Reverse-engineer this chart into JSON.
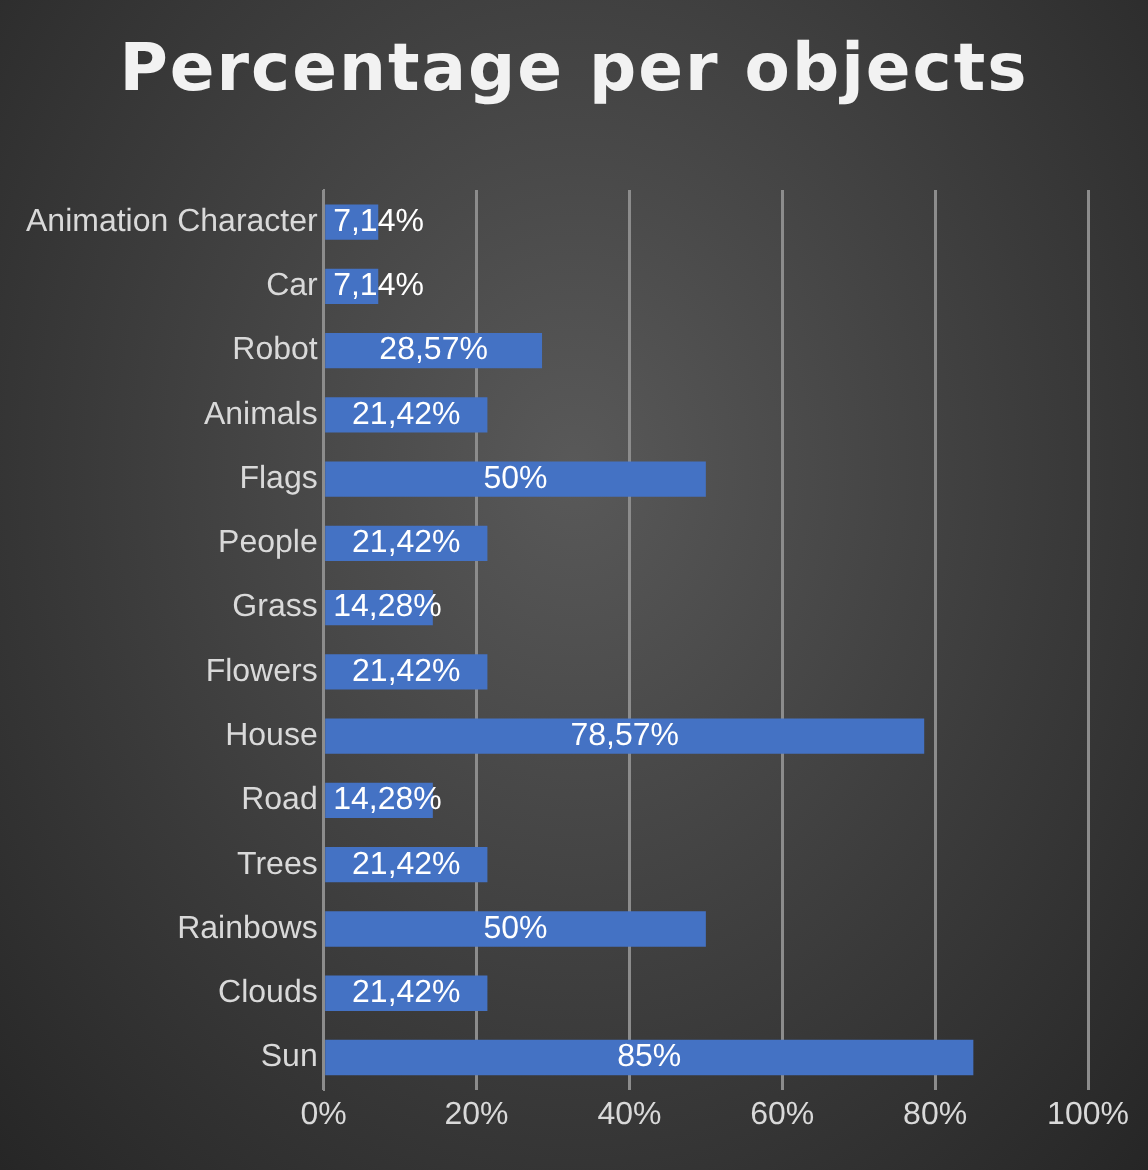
{
  "chart_data": {
    "type": "bar",
    "orientation": "horizontal",
    "title": "Percentage per objects",
    "categories": [
      "Animation Character",
      "Car",
      "Robot",
      "Animals",
      "Flags",
      "People",
      "Grass",
      "Flowers",
      "House",
      "Road",
      "Trees",
      "Rainbows",
      "Clouds",
      "Sun"
    ],
    "values": [
      7.14,
      7.14,
      28.57,
      21.42,
      50,
      21.42,
      14.28,
      21.42,
      78.57,
      14.28,
      21.42,
      50,
      21.42,
      85
    ],
    "value_labels": [
      "7,14%",
      "7,14%",
      "28,57%",
      "21,42%",
      "50%",
      "21,42%",
      "14,28%",
      "21,42%",
      "78,57%",
      "14,28%",
      "21,42%",
      "50%",
      "21,42%",
      "85%"
    ],
    "color": "#4472c4",
    "xlim": [
      0,
      100
    ],
    "xticks": [
      {
        "value": 0,
        "label": "0%"
      },
      {
        "value": 20,
        "label": "20%"
      },
      {
        "value": 40,
        "label": "40%"
      },
      {
        "value": 60,
        "label": "60%"
      },
      {
        "value": 80,
        "label": "80%"
      },
      {
        "value": 100,
        "label": "100%"
      }
    ],
    "grid": "x",
    "legend": false
  }
}
